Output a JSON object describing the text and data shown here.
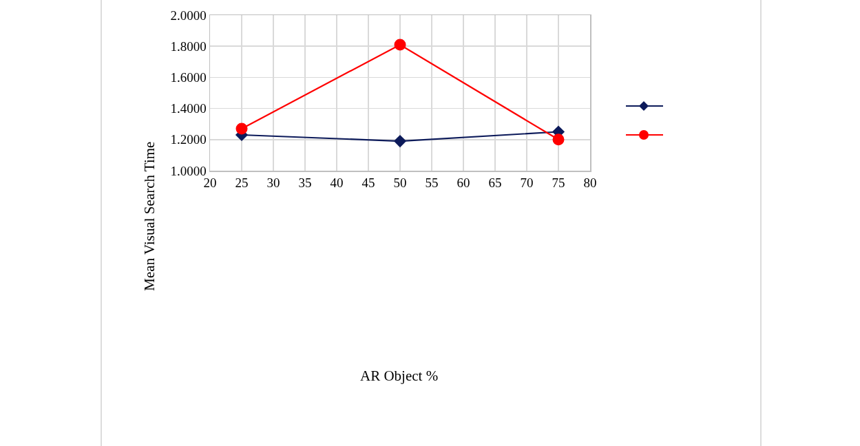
{
  "chart_data": {
    "type": "line",
    "annotations": [
      "AR Object %"
    ],
    "ylabel": "Mean Visual Search Time",
    "x": [
      25,
      50,
      75
    ],
    "series": [
      {
        "color": "#0c1a5a",
        "marker": "diamond",
        "values": [
          1.23,
          1.19,
          1.25
        ]
      },
      {
        "color": "#ff0000",
        "marker": "circle",
        "values": [
          1.27,
          1.81,
          1.2
        ]
      }
    ],
    "xlim": [
      20,
      80
    ],
    "xticks": [
      20,
      25,
      30,
      35,
      40,
      45,
      50,
      55,
      60,
      65,
      70,
      75,
      80
    ],
    "ylim": [
      1,
      2
    ],
    "yticks": [
      {
        "value": 1,
        "label": "1.0000"
      },
      {
        "value": 1.2,
        "label": "1.2000"
      },
      {
        "value": 1.4,
        "label": "1.4000"
      },
      {
        "value": 1.6,
        "label": "1.6000"
      },
      {
        "value": 1.8,
        "label": "1.8000"
      },
      {
        "value": 2,
        "label": "2.0000"
      }
    ],
    "grid": true,
    "line_style": "solid"
  }
}
